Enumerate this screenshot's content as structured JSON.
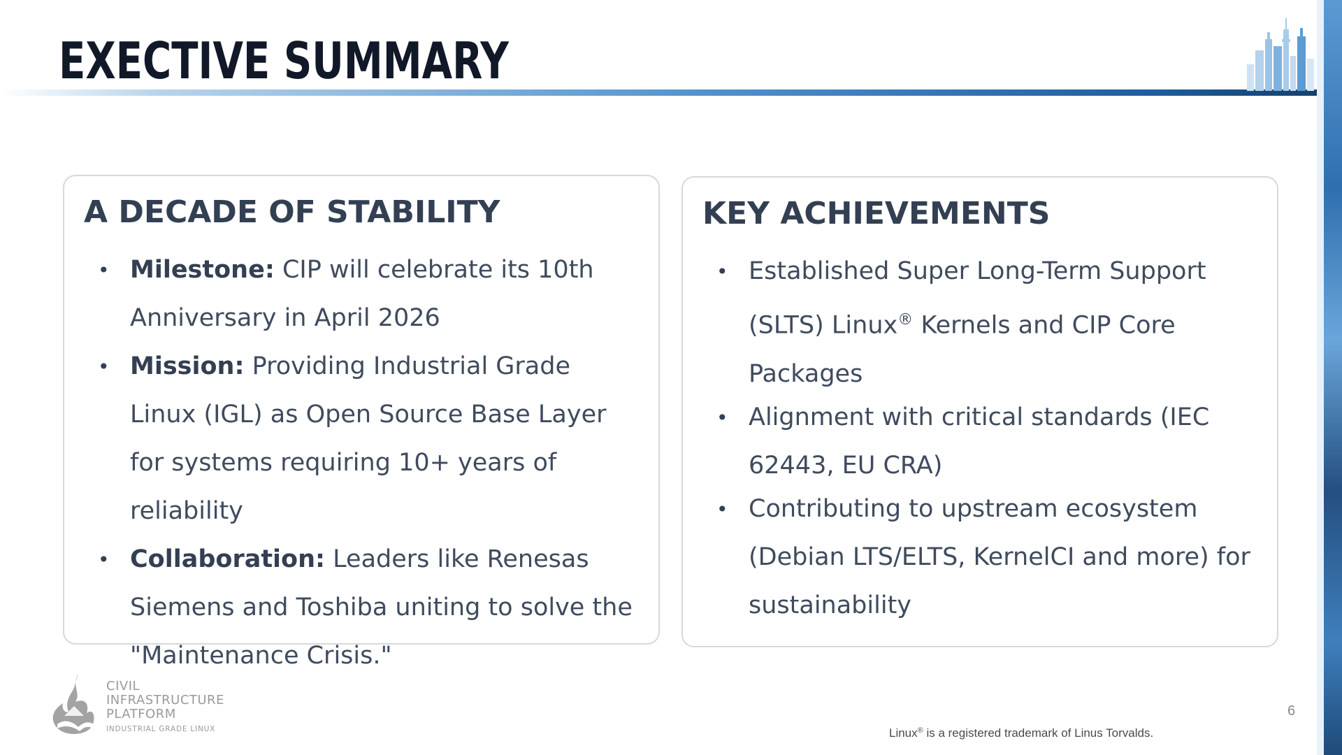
{
  "slide": {
    "title": "EXECTIVE SUMMARY",
    "page_number": "6",
    "colors": {
      "title": "#111827",
      "heading": "#333f52",
      "body": "#3f4b5e",
      "accent_blue": "#1c5d9c"
    }
  },
  "left_card": {
    "heading": "A DECADE OF STABILITY",
    "bullets": [
      {
        "label": "Milestone:",
        "text": "CIP will celebrate its 10th Anniversary in April 2026"
      },
      {
        "label": "Mission:",
        "text": "Providing Industrial Grade Linux (IGL) as Open Source Base Layer for systems requiring 10+ years of reliability"
      },
      {
        "label": "Collaboration:",
        "text": "Leaders like Renesas Siemens and Toshiba uniting to solve the \"Maintenance Crisis.\""
      }
    ]
  },
  "right_card": {
    "heading": "KEY ACHIEVEMENTS",
    "bullets": [
      {
        "text_before": "Established Super Long-Term Support (SLTS) Linux",
        "mark": "®",
        "text_after": " Kernels and CIP Core Packages"
      },
      {
        "text": "Alignment with critical standards (IEC 62443, EU CRA)"
      },
      {
        "text": "Contributing to upstream ecosystem (Debian LTS/ELTS, KernelCI and more) for sustainability"
      }
    ]
  },
  "logo": {
    "line1": "CIVIL",
    "line2": "INFRASTRUCTURE",
    "line3": "PLATFORM",
    "tagline": "INDUSTRIAL GRADE LINUX",
    "icon": "flame-logo-icon"
  },
  "footnote": {
    "before": "Linux",
    "mark": "®",
    "after": " is a registered trademark of Linus Torvalds."
  },
  "decor": {
    "skyline_icon": "city-skyline-icon"
  }
}
